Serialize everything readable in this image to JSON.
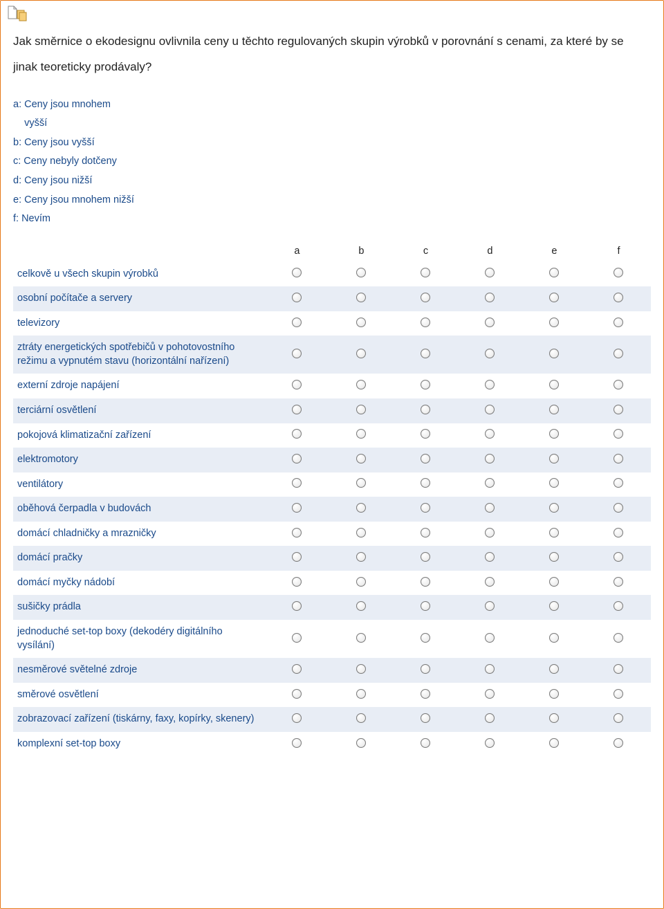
{
  "colors": {
    "border": "#e67817",
    "text": "#222222",
    "link": "#1a4a8a",
    "shade": "#e8edf5",
    "background": "#ffffff"
  },
  "question": "Jak směrnice o ekodesignu ovlivnila ceny u těchto regulovaných skupin výrobků v porovnání s cenami, za které by se jinak teoreticky prodávaly?",
  "answers": {
    "a": {
      "key": "a:",
      "text": "Ceny jsou mnohem vyšší"
    },
    "b": {
      "key": "b:",
      "text": "Ceny jsou vyšší"
    },
    "c": {
      "key": "c:",
      "text": "Ceny nebyly dotčeny"
    },
    "d": {
      "key": "d:",
      "text": "Ceny jsou nižší"
    },
    "e": {
      "key": "e:",
      "text": "Ceny jsou mnohem nižší"
    },
    "f": {
      "key": "f:",
      "text": "Nevím"
    }
  },
  "columns": [
    "a",
    "b",
    "c",
    "d",
    "e",
    "f"
  ],
  "rows": [
    "celkově u všech skupin výrobků",
    "osobní počítače a servery",
    "televizory",
    "ztráty energetických spotřebičů v pohotovostního režimu a vypnutém stavu (horizontální nařízení)",
    "externí zdroje napájení",
    "terciární osvětlení",
    "pokojová klimatizační zařízení",
    "elektromotory",
    "ventilátory",
    "oběhová čerpadla v budovách",
    "domácí chladničky a mrazničky",
    "domácí pračky",
    "domácí myčky nádobí",
    "sušičky prádla",
    "jednoduché set-top boxy (dekodéry digitálního vysílání)",
    "nesměrové světelné zdroje",
    "směrové osvětlení",
    "zobrazovací zařízení (tiskárny, faxy, kopírky, skenery)",
    "komplexní set-top boxy"
  ]
}
